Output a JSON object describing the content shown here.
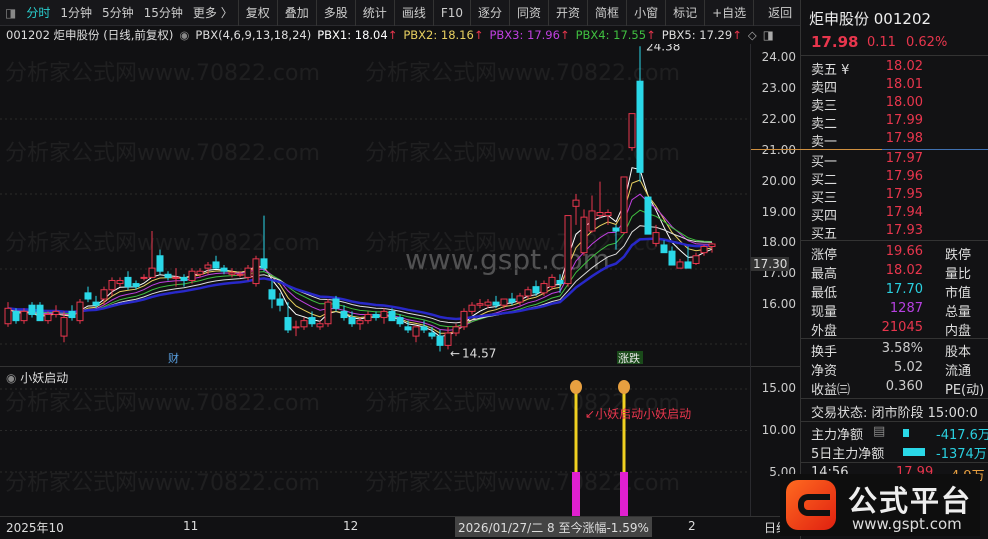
{
  "toolbar": {
    "periods": [
      "分时",
      "1分钟",
      "5分钟",
      "15分钟",
      "更多 〉"
    ],
    "buttons": [
      "复权",
      "叠加",
      "多股",
      "统计",
      "画线",
      "F10",
      "逐分",
      "同资",
      "开资",
      "简框",
      "小窗",
      "标记",
      "+自选",
      "返回"
    ]
  },
  "info": {
    "title": "001202 炬申股份 (日线,前复权)",
    "indicator": "PBX(4,6,9,13,18,24)",
    "pbx": [
      {
        "label": "PBX1: 18.04",
        "color": "#ffffff"
      },
      {
        "label": "PBX2: 18.16",
        "color": "#e8d060"
      },
      {
        "label": "PBX3: 17.96",
        "color": "#c040e0"
      },
      {
        "label": "PBX4: 17.55",
        "color": "#40c040"
      },
      {
        "label": "PBX5: 17.29",
        "color": "#dddddd"
      }
    ],
    "arrow": "↑"
  },
  "colors": {
    "up": "#e8364d",
    "down": "#2ad8e8",
    "ma6": "#2828c8"
  },
  "chart": {
    "yticks": [
      "24.00",
      "23.00",
      "22.00",
      "21.00",
      "20.00",
      "19.00",
      "18.00",
      "17.00",
      "16.00"
    ],
    "current_marker": "17.30",
    "high_label": "24.38",
    "low_label": "14.57",
    "event_cai": "财",
    "event_zd": "涨跌",
    "center_watermark": "www.gspt.com",
    "candles": [
      [
        15.4,
        16.1,
        15.3,
        15.9
      ],
      [
        15.8,
        15.9,
        15.4,
        15.5
      ],
      [
        15.5,
        15.9,
        15.4,
        15.8
      ],
      [
        16.0,
        16.1,
        15.6,
        15.7
      ],
      [
        16.0,
        16.1,
        15.5,
        15.5
      ],
      [
        15.5,
        15.8,
        15.4,
        15.7
      ],
      [
        15.7,
        16.0,
        15.6,
        15.8
      ],
      [
        15.0,
        15.8,
        14.8,
        15.6
      ],
      [
        15.8,
        16.0,
        15.5,
        15.6
      ],
      [
        15.5,
        16.2,
        15.4,
        16.1
      ],
      [
        16.4,
        16.6,
        16.1,
        16.2
      ],
      [
        16.1,
        16.3,
        15.9,
        16.0
      ],
      [
        16.2,
        16.6,
        16.0,
        16.5
      ],
      [
        16.5,
        16.9,
        16.3,
        16.8
      ],
      [
        16.7,
        16.9,
        16.6,
        16.8
      ],
      [
        16.9,
        17.1,
        16.5,
        16.6
      ],
      [
        16.7,
        16.8,
        16.5,
        16.6
      ],
      [
        16.9,
        17.0,
        16.8,
        16.9
      ],
      [
        16.9,
        18.4,
        16.9,
        17.2
      ],
      [
        17.6,
        17.8,
        17.0,
        17.1
      ],
      [
        17.0,
        17.1,
        16.8,
        16.9
      ],
      [
        16.9,
        17.2,
        16.6,
        16.9
      ],
      [
        16.9,
        17.0,
        16.6,
        16.8
      ],
      [
        16.8,
        17.2,
        16.7,
        17.1
      ],
      [
        17.0,
        17.2,
        16.9,
        17.1
      ],
      [
        17.2,
        17.4,
        17.0,
        17.3
      ],
      [
        17.4,
        17.6,
        17.2,
        17.2
      ],
      [
        17.2,
        17.3,
        17.0,
        17.1
      ],
      [
        17.0,
        17.2,
        16.9,
        17.05
      ],
      [
        17.0,
        17.1,
        16.9,
        17.0
      ],
      [
        16.9,
        17.3,
        16.8,
        17.2
      ],
      [
        16.7,
        17.6,
        16.6,
        17.5
      ],
      [
        17.5,
        18.9,
        17.1,
        17.2
      ],
      [
        16.5,
        16.8,
        15.9,
        16.2
      ],
      [
        16.2,
        16.4,
        15.8,
        16.0
      ],
      [
        15.6,
        16.1,
        15.1,
        15.2
      ],
      [
        15.3,
        15.5,
        15.0,
        15.3
      ],
      [
        15.3,
        15.6,
        15.2,
        15.5
      ],
      [
        15.6,
        15.8,
        15.3,
        15.4
      ],
      [
        15.3,
        15.5,
        15.2,
        15.4
      ],
      [
        15.4,
        16.2,
        15.3,
        16.1
      ],
      [
        16.2,
        16.3,
        15.8,
        15.9
      ],
      [
        15.8,
        16.0,
        15.5,
        15.6
      ],
      [
        15.6,
        15.8,
        15.3,
        15.4
      ],
      [
        15.4,
        15.6,
        15.2,
        15.5
      ],
      [
        15.5,
        15.8,
        15.4,
        15.7
      ],
      [
        15.7,
        15.8,
        15.5,
        15.6
      ],
      [
        15.6,
        15.9,
        15.4,
        15.8
      ],
      [
        15.8,
        15.9,
        15.5,
        15.5
      ],
      [
        15.6,
        15.7,
        15.3,
        15.4
      ],
      [
        15.3,
        15.5,
        15.1,
        15.2
      ],
      [
        15.0,
        15.3,
        14.8,
        15.3
      ],
      [
        15.3,
        15.5,
        15.1,
        15.2
      ],
      [
        15.1,
        15.3,
        14.9,
        15.0
      ],
      [
        15.0,
        15.2,
        14.5,
        14.7
      ],
      [
        14.7,
        15.3,
        14.57,
        15.1
      ],
      [
        15.1,
        15.4,
        15.0,
        15.3
      ],
      [
        15.3,
        15.9,
        15.2,
        15.8
      ],
      [
        15.8,
        16.1,
        15.7,
        16.0
      ],
      [
        16.0,
        16.2,
        15.9,
        16.05
      ],
      [
        16.0,
        16.2,
        15.9,
        16.1
      ],
      [
        16.1,
        16.3,
        15.9,
        16.0
      ],
      [
        16.0,
        16.2,
        15.9,
        16.2
      ],
      [
        16.2,
        16.4,
        16.0,
        16.1
      ],
      [
        16.1,
        16.4,
        16.0,
        16.3
      ],
      [
        16.3,
        16.6,
        16.2,
        16.5
      ],
      [
        16.6,
        16.8,
        16.3,
        16.4
      ],
      [
        16.4,
        16.8,
        16.3,
        16.7
      ],
      [
        16.6,
        17.0,
        16.5,
        16.9
      ],
      [
        16.8,
        17.0,
        16.4,
        16.7
      ],
      [
        16.7,
        18.9,
        16.6,
        18.9
      ],
      [
        19.2,
        19.6,
        18.6,
        19.4
      ],
      [
        17.7,
        19.1,
        17.6,
        18.85
      ],
      [
        18.4,
        19.55,
        18.35,
        19.05
      ],
      [
        18.9,
        20.0,
        18.8,
        19.0
      ],
      [
        18.9,
        19.1,
        18.6,
        19.0
      ],
      [
        18.5,
        18.6,
        17.8,
        18.4
      ],
      [
        18.35,
        20.15,
        18.3,
        20.15
      ],
      [
        21.1,
        22.2,
        21.0,
        22.2
      ],
      [
        23.25,
        24.38,
        20.0,
        20.3
      ],
      [
        19.5,
        19.5,
        18.3,
        18.3
      ],
      [
        18.0,
        18.6,
        17.9,
        18.35
      ],
      [
        17.95,
        18.1,
        17.7,
        17.7
      ],
      [
        17.75,
        17.9,
        17.3,
        17.3
      ],
      [
        17.2,
        17.5,
        17.2,
        17.4
      ],
      [
        17.4,
        17.9,
        17.2,
        17.2
      ],
      [
        17.35,
        17.7,
        17.3,
        17.6
      ],
      [
        17.7,
        17.95,
        17.6,
        17.9
      ],
      [
        17.9,
        18.02,
        17.7,
        17.98
      ]
    ]
  },
  "sub": {
    "title": "小妖启动",
    "signal_text": "小妖启动小妖启动",
    "yticks": [
      "15.00",
      "10.00",
      "5.00"
    ],
    "signals": [
      71,
      77
    ]
  },
  "xaxis": {
    "labels": [
      "2025年10",
      "11",
      "12",
      "2"
    ],
    "tooltip": "2026/01/27/二 8 至今涨幅-1.59%",
    "right": "日线"
  },
  "watermark": "分析家公式网www.70822.com",
  "panel": {
    "name": "炬申股份 001202",
    "price": "17.98",
    "change": "0.11",
    "pct": "0.62%",
    "asks": [
      {
        "k": "卖五 ¥",
        "v": "18.02"
      },
      {
        "k": "卖四",
        "v": "18.01"
      },
      {
        "k": "卖三",
        "v": "18.00"
      },
      {
        "k": "卖二",
        "v": "17.99"
      },
      {
        "k": "卖一",
        "v": "17.98"
      }
    ],
    "bids": [
      {
        "k": "买一",
        "v": "17.97"
      },
      {
        "k": "买二",
        "v": "17.96"
      },
      {
        "k": "买三",
        "v": "17.95"
      },
      {
        "k": "买四",
        "v": "17.94"
      },
      {
        "k": "买五",
        "v": "17.93"
      }
    ],
    "stats": [
      {
        "k": "涨停",
        "v": "19.66",
        "c": "red",
        "k2": "跌停"
      },
      {
        "k": "最高",
        "v": "18.02",
        "c": "red",
        "k2": "量比"
      },
      {
        "k": "最低",
        "v": "17.70",
        "c": "cy",
        "k2": "市值"
      },
      {
        "k": "现量",
        "v": "1287",
        "c": "pu",
        "k2": "总量"
      },
      {
        "k": "外盘",
        "v": "21045",
        "c": "red",
        "k2": "内盘"
      }
    ],
    "stats2": [
      {
        "k": "换手",
        "v": "3.58%",
        "k2": "股本"
      },
      {
        "k": "净资",
        "v": "5.02",
        "k2": "流通"
      },
      {
        "k": "收益㈢",
        "v": "0.360",
        "k2": "PE(动)"
      }
    ],
    "status": "交易状态: 闭市阶段 15:00:0",
    "flow": [
      {
        "k": "主力净额",
        "v": "-417.6万"
      },
      {
        "k": "5日主力净额",
        "v": "-1374万"
      }
    ],
    "tick": {
      "time": "14:56",
      "price": "17.99",
      "vol": "4.9万"
    }
  },
  "logo": {
    "text": "公式平台",
    "url": "www.gspt.com"
  }
}
